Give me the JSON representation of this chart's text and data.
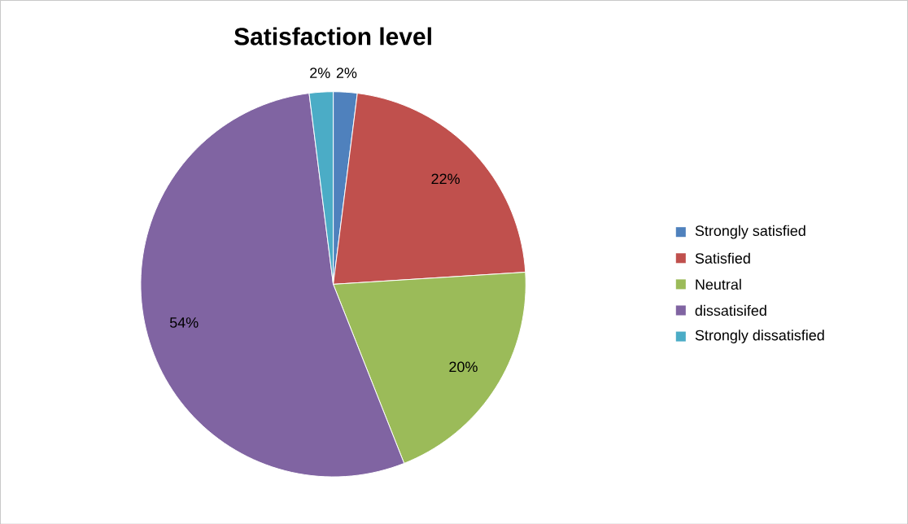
{
  "chart_data": {
    "type": "pie",
    "title": "Satisfaction level",
    "categories": [
      "Strongly satisfied",
      "Satisfied",
      "Neutral",
      "dissatisifed",
      "Strongly dissatisfied"
    ],
    "values": [
      2,
      22,
      20,
      54,
      2
    ],
    "value_labels": [
      "2%",
      "22%",
      "20%",
      "54%",
      "2%"
    ],
    "colors": [
      "#4f81bd",
      "#c0504d",
      "#9bbb59",
      "#8064a2",
      "#4bacc6"
    ],
    "legend": "right"
  }
}
